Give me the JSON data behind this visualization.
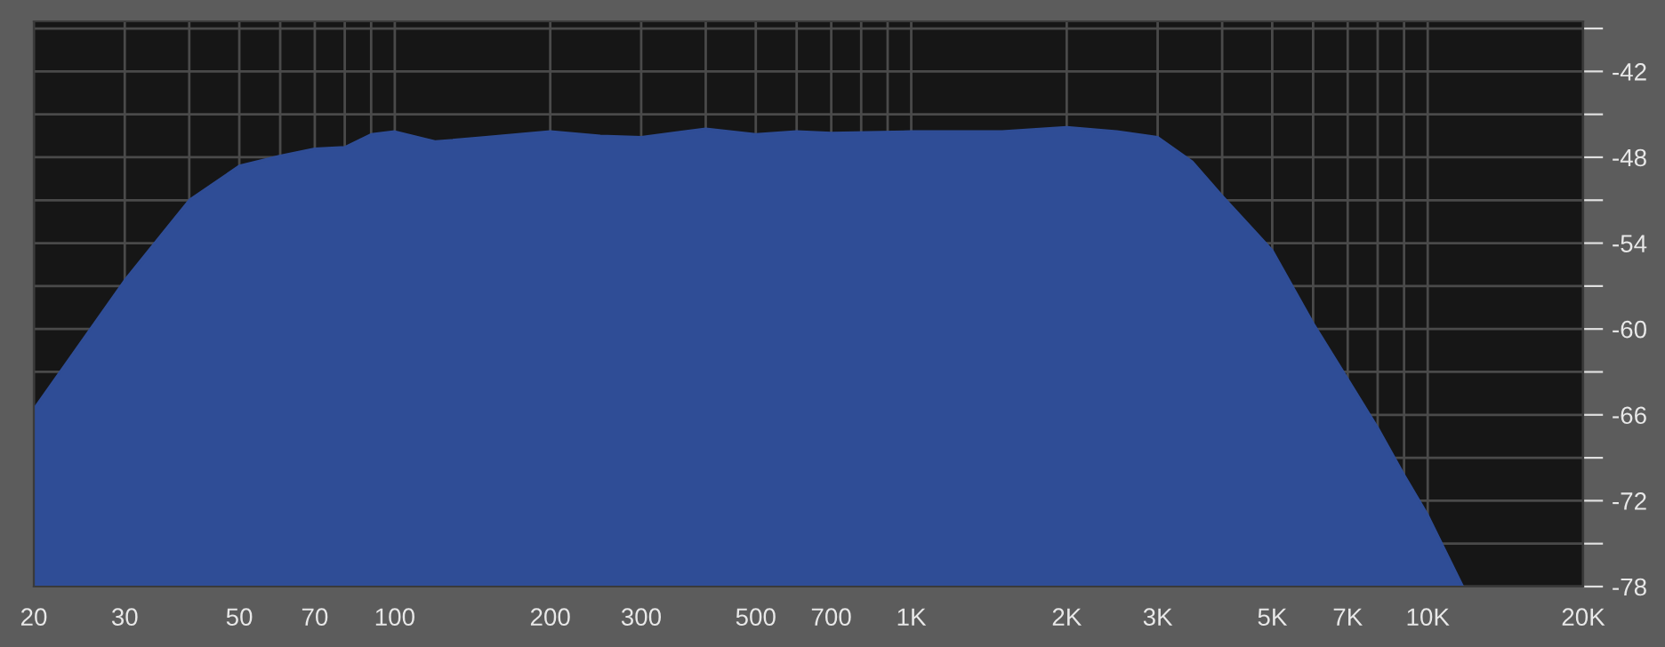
{
  "chart_data": {
    "type": "area",
    "log": "x",
    "x": [
      20,
      30,
      40,
      50,
      60,
      70,
      80,
      90,
      100,
      120,
      150,
      200,
      250,
      300,
      400,
      500,
      600,
      700,
      1000,
      1500,
      2000,
      2500,
      3000,
      3500,
      4000,
      5000,
      6000,
      7000,
      8000,
      9000,
      10000,
      11700
    ],
    "series": [
      {
        "color": "#2f4d96",
        "values": [
          -65.6,
          -56.6,
          -51.0,
          -48.6,
          -47.9,
          -47.4,
          -47.3,
          -46.4,
          -46.2,
          -46.9,
          -46.6,
          -46.2,
          -46.5,
          -46.6,
          -46.0,
          -46.4,
          -46.2,
          -46.3,
          -46.2,
          -46.2,
          -45.9,
          -46.2,
          -46.6,
          -48.3,
          -50.7,
          -54.5,
          -59.6,
          -63.5,
          -66.9,
          -70.2,
          -73.0,
          -78.0
        ]
      }
    ],
    "xlim": [
      20,
      20000
    ],
    "ylim": [
      -78,
      -38.5
    ],
    "xticks": [
      20,
      30,
      {
        "value": 40,
        "label": null
      },
      50,
      {
        "value": 60,
        "label": null
      },
      70,
      {
        "value": 80,
        "label": null
      },
      {
        "value": 90,
        "label": null
      },
      100,
      200,
      300,
      {
        "value": 400,
        "label": null
      },
      500,
      {
        "value": 600,
        "label": null
      },
      700,
      {
        "value": 800,
        "label": null
      },
      {
        "value": 900,
        "label": null
      },
      {
        "value": 1000,
        "label": "1K"
      },
      {
        "value": 2000,
        "label": "2K"
      },
      {
        "value": 3000,
        "label": "3K"
      },
      {
        "value": 4000,
        "label": null
      },
      {
        "value": 5000,
        "label": "5K"
      },
      {
        "value": 6000,
        "label": null
      },
      {
        "value": 7000,
        "label": "7K"
      },
      {
        "value": 8000,
        "label": null
      },
      {
        "value": 9000,
        "label": null
      },
      {
        "value": 10000,
        "label": "10K"
      },
      {
        "value": 20000,
        "label": "20K"
      }
    ],
    "yticks": [
      -78,
      {
        "value": -75,
        "label": null
      },
      -72,
      {
        "value": -69,
        "label": null
      },
      -66,
      {
        "value": -63,
        "label": null
      },
      -60,
      {
        "value": -57,
        "label": null
      },
      -54,
      {
        "value": -51,
        "label": null
      },
      -48,
      {
        "value": -45,
        "label": null
      },
      -42,
      {
        "value": -39,
        "label": null
      }
    ],
    "grid": true
  }
}
